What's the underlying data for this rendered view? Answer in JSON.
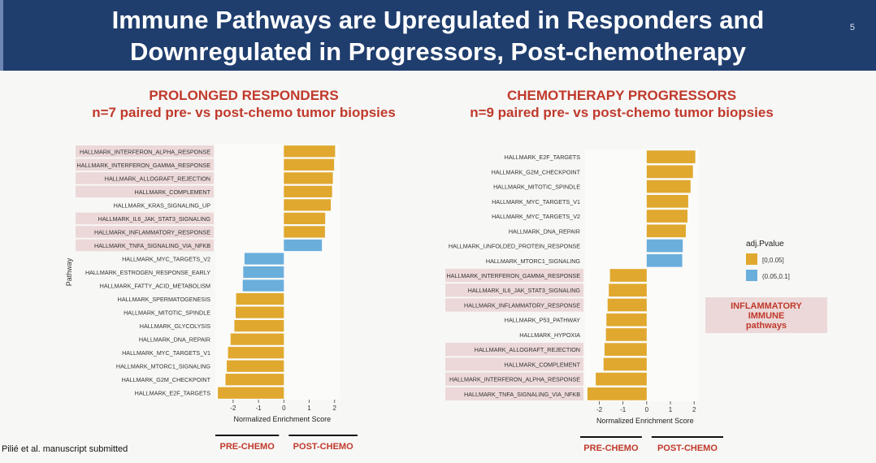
{
  "slide": {
    "title_line1": "Immune Pathways are Upregulated in Responders and",
    "title_line2": "Downregulated in Progressors, Post-chemotherapy",
    "slide_number": "5",
    "citation": "Pilié et al. manuscript submitted"
  },
  "panels": {
    "left_title": "PROLONGED RESPONDERS",
    "left_subtitle": "n=7 paired pre- vs post-chemo tumor biopsies",
    "right_title": "CHEMOTHERAPY PROGRESSORS",
    "right_subtitle": "n=9 paired pre- vs post-chemo tumor biopsies",
    "pre_label": "PRE-CHEMO",
    "post_label": "POST-CHEMO"
  },
  "legend": {
    "title": "adj.Pvalue",
    "items": [
      {
        "label": "[0,0.05]",
        "color": "#e0a82e"
      },
      {
        "label": "(0.05,0.1]",
        "color": "#6aaedc"
      }
    ],
    "box_line1": "INFLAMMATORY",
    "box_line2": "IMMUNE",
    "box_line3": "pathways",
    "highlight_color": "#ecd8d8"
  },
  "chart_data": [
    {
      "type": "bar",
      "orientation": "horizontal",
      "title": "PROLONGED RESPONDERS",
      "xlabel": "Normalized Enrichment Score",
      "ylabel": "Pathway",
      "xlim": [
        -2.7,
        2.2
      ],
      "xticks": [
        -2,
        -1,
        0,
        1,
        2
      ],
      "categories": [
        "HALLMARK_INTERFERON_ALPHA_RESPONSE",
        "HALLMARK_INTERFERON_GAMMA_RESPONSE",
        "HALLMARK_ALLOGRAFT_REJECTION",
        "HALLMARK_COMPLEMENT",
        "HALLMARK_KRAS_SIGNALING_UP",
        "HALLMARK_IL6_JAK_STAT3_SIGNALING",
        "HALLMARK_INFLAMMATORY_RESPONSE",
        "HALLMARK_TNFA_SIGNALING_VIA_NFKB",
        "HALLMARK_MYC_TARGETS_V2",
        "HALLMARK_ESTROGEN_RESPONSE_EARLY",
        "HALLMARK_FATTY_ACID_METABOLISM",
        "HALLMARK_SPERMATOGENESIS",
        "HALLMARK_MITOTIC_SPINDLE",
        "HALLMARK_GLYCOLYSIS",
        "HALLMARK_DNA_REPAIR",
        "HALLMARK_MYC_TARGETS_V1",
        "HALLMARK_MTORC1_SIGNALING",
        "HALLMARK_G2M_CHECKPOINT",
        "HALLMARK_E2F_TARGETS"
      ],
      "values": [
        2.02,
        1.98,
        1.93,
        1.9,
        1.85,
        1.63,
        1.62,
        1.5,
        -1.55,
        -1.6,
        -1.62,
        -1.88,
        -1.9,
        -1.95,
        -2.1,
        -2.2,
        -2.25,
        -2.3,
        -2.6
      ],
      "pvalue_group": [
        "a",
        "a",
        "a",
        "a",
        "a",
        "a",
        "a",
        "b",
        "b",
        "b",
        "b",
        "a",
        "a",
        "a",
        "a",
        "a",
        "a",
        "a",
        "a"
      ],
      "highlighted": [
        true,
        true,
        true,
        true,
        false,
        true,
        true,
        true,
        false,
        false,
        false,
        false,
        false,
        false,
        false,
        false,
        false,
        false,
        false
      ]
    },
    {
      "type": "bar",
      "orientation": "horizontal",
      "title": "CHEMOTHERAPY PROGRESSORS",
      "xlabel": "Normalized Enrichment Score",
      "ylabel": "",
      "xlim": [
        -2.6,
        2.2
      ],
      "xticks": [
        -2,
        -1,
        0,
        1,
        2
      ],
      "categories": [
        "HALLMARK_E2F_TARGETS",
        "HALLMARK_G2M_CHECKPOINT",
        "HALLMARK_MITOTIC_SPINDLE",
        "HALLMARK_MYC_TARGETS_V1",
        "HALLMARK_MYC_TARGETS_V2",
        "HALLMARK_DNA_REPAIR",
        "HALLMARK_UNFOLDED_PROTEIN_RESPONSE",
        "HALLMARK_MTORC1_SIGNALING",
        "HALLMARK_INTERFERON_GAMMA_RESPONSE",
        "HALLMARK_IL6_JAK_STAT3_SIGNALING",
        "HALLMARK_INFLAMMATORY_RESPONSE",
        "HALLMARK_P53_PATHWAY",
        "HALLMARK_HYPOXIA",
        "HALLMARK_ALLOGRAFT_REJECTION",
        "HALLMARK_COMPLEMENT",
        "HALLMARK_INTERFERON_ALPHA_RESPONSE",
        "HALLMARK_TNFA_SIGNALING_VIA_NFKB"
      ],
      "values": [
        2.05,
        1.95,
        1.85,
        1.75,
        1.72,
        1.65,
        1.52,
        1.5,
        -1.55,
        -1.6,
        -1.65,
        -1.7,
        -1.72,
        -1.78,
        -1.82,
        -2.15,
        -2.5
      ],
      "pvalue_group": [
        "a",
        "a",
        "a",
        "a",
        "a",
        "a",
        "b",
        "b",
        "a",
        "a",
        "a",
        "a",
        "a",
        "a",
        "a",
        "a",
        "a"
      ],
      "highlighted": [
        false,
        false,
        false,
        false,
        false,
        false,
        false,
        false,
        true,
        true,
        true,
        false,
        false,
        true,
        true,
        true,
        true
      ]
    }
  ]
}
